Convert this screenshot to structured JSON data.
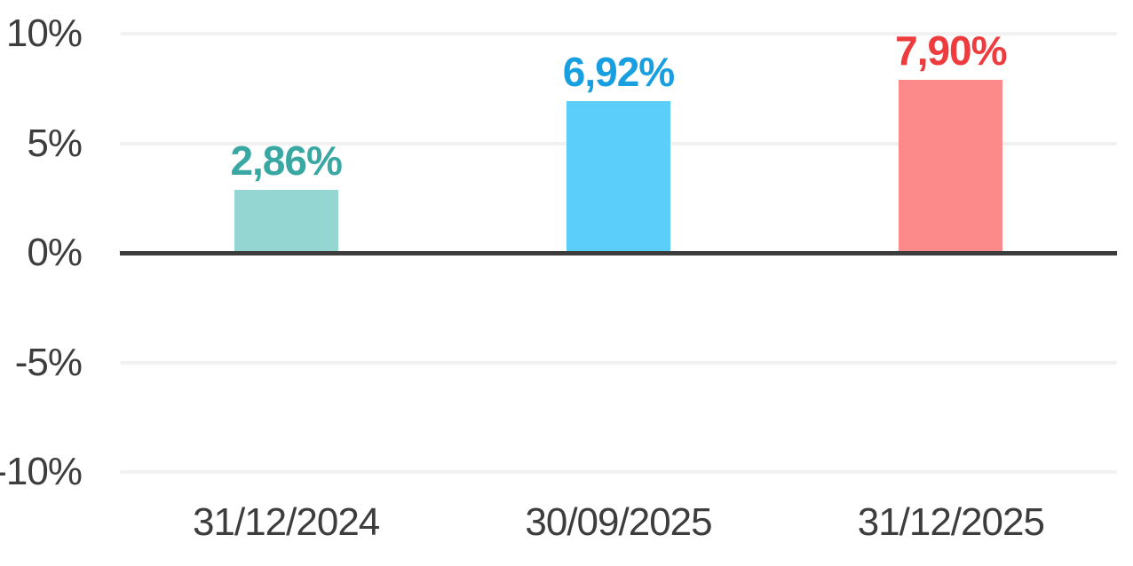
{
  "chart_data": {
    "type": "bar",
    "title": "",
    "xlabel": "",
    "ylabel": "",
    "categories": [
      "31/12/2024",
      "30/09/2025",
      "31/12/2025"
    ],
    "values": [
      2.86,
      6.92,
      7.9
    ],
    "value_labels": [
      "2,86%",
      "6,92%",
      "7,90%"
    ],
    "bar_colors": [
      "#94D6D2",
      "#5BCFFA",
      "#FC8A8A"
    ],
    "value_label_colors": [
      "#3AA8A2",
      "#189FE0",
      "#EE3B3E"
    ],
    "y_ticks": [
      {
        "value": 10,
        "label": "10%"
      },
      {
        "value": 5,
        "label": "5%"
      },
      {
        "value": 0,
        "label": "0%"
      },
      {
        "value": -5,
        "label": "-5%"
      },
      {
        "value": -10,
        "label": "-10%"
      }
    ],
    "ylim": [
      -10,
      10
    ],
    "grid": true,
    "legend_position": "none",
    "colors": {
      "gridline": "#F1F1F1",
      "zero_line": "#3C3C3C",
      "axis_text": "#3D3D3D",
      "background": "#FFFFFF"
    }
  }
}
